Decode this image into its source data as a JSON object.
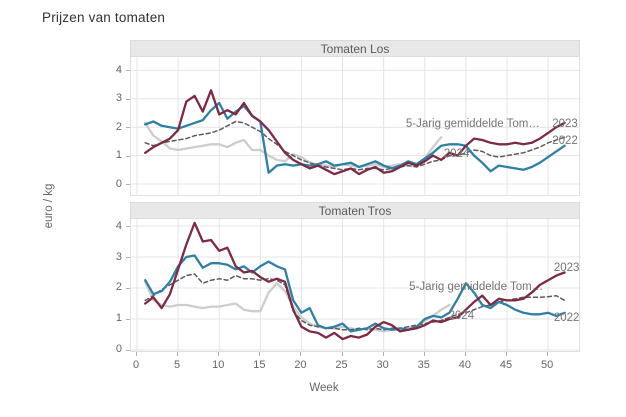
{
  "title": "Prijzen van tomaten",
  "x_axis": {
    "label": "Week",
    "ticks": [
      0,
      5,
      10,
      15,
      20,
      25,
      30,
      35,
      40,
      45,
      50
    ]
  },
  "y_axis": {
    "label": "euro / kg",
    "ticks": [
      0,
      1,
      2,
      3,
      4
    ]
  },
  "colors": {
    "line_2023": "#7e2a44",
    "line_2022": "#2e80a5",
    "line_2024": "#cdcdcd",
    "line_5yr_avg": "#5c5c5c",
    "grid": "#e4e4e4",
    "strip_bg": "#e8e8e8",
    "annotation_text": "#757575"
  },
  "chart_data": [
    {
      "type": "line",
      "title": "Tomaten Los",
      "xlabel": "Week",
      "ylabel": "euro / kg",
      "x_is_week_number_starting_at": 1,
      "xlim": [
        -0.73,
        54.0
      ],
      "ylim": [
        -0.42,
        4.47
      ],
      "grid": true,
      "legend": "direct-labels",
      "series": [
        {
          "name": "2024",
          "color": "#cdcdcd",
          "dash": null,
          "width": 2.3,
          "values": [
            2.15,
            1.7,
            1.5,
            1.25,
            1.2,
            1.25,
            1.3,
            1.35,
            1.4,
            1.4,
            1.3,
            1.45,
            1.55,
            1.2,
            1.2,
            1.0,
            0.85,
            0.8,
            1.05,
            0.95,
            0.75,
            0.7,
            0.65,
            0.6,
            0.7,
            0.65,
            0.6,
            0.65,
            0.7,
            0.6,
            0.65,
            0.7,
            0.65,
            0.7,
            0.9,
            1.3,
            1.65,
            null,
            null,
            null,
            null,
            null,
            null,
            null,
            null,
            null,
            null,
            null,
            null,
            null,
            null,
            null
          ]
        },
        {
          "name": "5-Jarig gemiddelde",
          "color": "#5c5c5c",
          "dash": "4 3",
          "width": 1.5,
          "values": [
            1.45,
            1.35,
            1.45,
            1.5,
            1.55,
            1.6,
            1.7,
            1.75,
            1.8,
            1.9,
            2.05,
            2.2,
            2.15,
            2.0,
            1.85,
            1.6,
            1.4,
            1.15,
            1.0,
            0.85,
            0.75,
            0.65,
            0.6,
            0.55,
            0.5,
            0.55,
            0.5,
            0.55,
            0.55,
            0.5,
            0.55,
            0.6,
            0.65,
            0.6,
            0.7,
            0.8,
            0.85,
            1.0,
            1.0,
            1.1,
            1.2,
            1.15,
            1.0,
            0.95,
            1.0,
            1.05,
            1.1,
            1.2,
            1.3,
            1.45,
            1.55,
            1.65
          ]
        },
        {
          "name": "2022",
          "color": "#2e80a5",
          "dash": null,
          "width": 2.3,
          "values": [
            2.1,
            2.2,
            2.05,
            2.0,
            1.95,
            2.05,
            2.15,
            2.25,
            2.6,
            2.85,
            2.3,
            2.55,
            2.75,
            2.4,
            2.2,
            0.4,
            0.65,
            0.7,
            0.65,
            0.7,
            0.65,
            0.7,
            0.8,
            0.65,
            0.7,
            0.75,
            0.6,
            0.7,
            0.8,
            0.65,
            0.55,
            0.65,
            0.8,
            0.7,
            0.9,
            1.1,
            1.35,
            1.4,
            1.4,
            1.35,
            1.0,
            0.75,
            0.45,
            0.65,
            0.6,
            0.55,
            0.5,
            0.6,
            0.75,
            0.95,
            1.15,
            1.35
          ]
        },
        {
          "name": "2023",
          "color": "#7e2a44",
          "dash": null,
          "width": 2.3,
          "values": [
            1.1,
            1.3,
            1.45,
            1.6,
            1.9,
            2.9,
            3.1,
            2.55,
            3.3,
            2.45,
            2.6,
            2.45,
            2.85,
            2.4,
            2.2,
            1.9,
            1.5,
            1.1,
            0.85,
            0.7,
            0.55,
            0.65,
            0.5,
            0.35,
            0.45,
            0.55,
            0.35,
            0.5,
            0.6,
            0.4,
            0.45,
            0.6,
            0.75,
            0.65,
            0.8,
            1.0,
            0.85,
            1.1,
            1.0,
            1.35,
            1.6,
            1.55,
            1.45,
            1.4,
            1.4,
            1.45,
            1.4,
            1.45,
            1.6,
            1.8,
            2.0,
            2.15
          ]
        }
      ],
      "annotations": [
        {
          "text": "5-Jarig gemiddelde Tom…",
          "week": 32.7,
          "value": 2.11,
          "anchor": "start"
        },
        {
          "text": "2023",
          "week": 50.5,
          "value": 2.11,
          "anchor": "start"
        },
        {
          "text": "2022",
          "week": 50.5,
          "value": 1.51,
          "anchor": "start"
        },
        {
          "text": "2024",
          "week": 37.3,
          "value": 1.05,
          "anchor": "start"
        }
      ]
    },
    {
      "type": "line",
      "title": "Tomaten Tros",
      "xlabel": "Week",
      "ylabel": "euro / kg",
      "x_is_week_number_starting_at": 1,
      "xlim": [
        -0.73,
        54.0
      ],
      "ylim": [
        -0.065,
        4.226
      ],
      "grid": true,
      "legend": "direct-labels",
      "series": [
        {
          "name": "2024",
          "color": "#cdcdcd",
          "dash": null,
          "width": 2.3,
          "values": [
            2.2,
            1.6,
            1.45,
            1.4,
            1.45,
            1.45,
            1.4,
            1.35,
            1.4,
            1.4,
            1.45,
            1.5,
            1.3,
            1.25,
            1.25,
            1.85,
            2.15,
            1.9,
            1.4,
            1.05,
            0.85,
            0.75,
            0.7,
            0.7,
            0.75,
            0.7,
            0.65,
            0.7,
            0.65,
            0.6,
            0.65,
            0.65,
            0.7,
            0.75,
            0.95,
            1.1,
            1.3,
            1.45,
            null,
            null,
            null,
            null,
            null,
            null,
            null,
            null,
            null,
            null,
            null,
            null,
            null,
            null
          ]
        },
        {
          "name": "5-Jarig gemiddelde",
          "color": "#5c5c5c",
          "dash": "4 3",
          "width": 1.5,
          "values": [
            1.6,
            1.75,
            1.95,
            2.1,
            2.25,
            2.4,
            2.45,
            2.15,
            2.25,
            2.3,
            2.25,
            2.4,
            2.3,
            2.3,
            2.25,
            2.3,
            2.25,
            2.1,
            1.25,
            0.95,
            0.8,
            0.75,
            0.7,
            0.7,
            0.65,
            0.65,
            0.7,
            0.65,
            0.7,
            0.65,
            0.7,
            0.7,
            0.75,
            0.8,
            0.85,
            0.9,
            0.95,
            1.05,
            1.15,
            1.2,
            1.3,
            1.4,
            1.45,
            1.55,
            1.6,
            1.65,
            1.7,
            1.7,
            1.7,
            1.72,
            1.75,
            1.6
          ]
        },
        {
          "name": "2022",
          "color": "#2e80a5",
          "dash": null,
          "width": 2.3,
          "values": [
            2.25,
            1.8,
            1.9,
            2.2,
            2.7,
            3.0,
            3.05,
            2.65,
            2.8,
            2.8,
            2.75,
            2.6,
            2.7,
            2.5,
            2.7,
            2.85,
            2.7,
            2.6,
            1.6,
            1.2,
            1.35,
            0.8,
            0.7,
            0.75,
            0.85,
            0.6,
            0.65,
            0.7,
            0.85,
            0.7,
            0.65,
            0.7,
            0.65,
            0.75,
            1.0,
            1.1,
            1.05,
            1.2,
            1.65,
            2.15,
            1.85,
            1.45,
            1.35,
            1.55,
            1.45,
            1.3,
            1.2,
            1.15,
            1.15,
            1.2,
            1.1,
            1.2
          ]
        },
        {
          "name": "2023",
          "color": "#7e2a44",
          "dash": null,
          "width": 2.3,
          "values": [
            1.5,
            1.7,
            1.35,
            1.8,
            2.6,
            3.4,
            4.1,
            3.5,
            3.55,
            3.2,
            3.3,
            2.7,
            2.5,
            2.55,
            2.35,
            2.2,
            2.3,
            2.2,
            1.3,
            0.75,
            0.6,
            0.55,
            0.4,
            0.55,
            0.35,
            0.45,
            0.4,
            0.5,
            0.75,
            0.9,
            0.8,
            0.6,
            0.65,
            0.7,
            0.8,
            0.95,
            0.9,
            1.0,
            1.05,
            1.3,
            1.55,
            1.75,
            1.45,
            1.65,
            1.6,
            1.6,
            1.65,
            1.85,
            2.1,
            2.25,
            2.4,
            2.5
          ]
        }
      ],
      "annotations": [
        {
          "text": "2023",
          "week": 50.7,
          "value": 2.65,
          "anchor": "start"
        },
        {
          "text": "5-Jarig gemiddelde Tom…",
          "week": 33.1,
          "value": 2.03,
          "anchor": "start"
        },
        {
          "text": "2024",
          "week": 37.9,
          "value": 1.1,
          "anchor": "start"
        },
        {
          "text": "2022",
          "week": 50.7,
          "value": 1.03,
          "anchor": "start"
        }
      ]
    }
  ]
}
